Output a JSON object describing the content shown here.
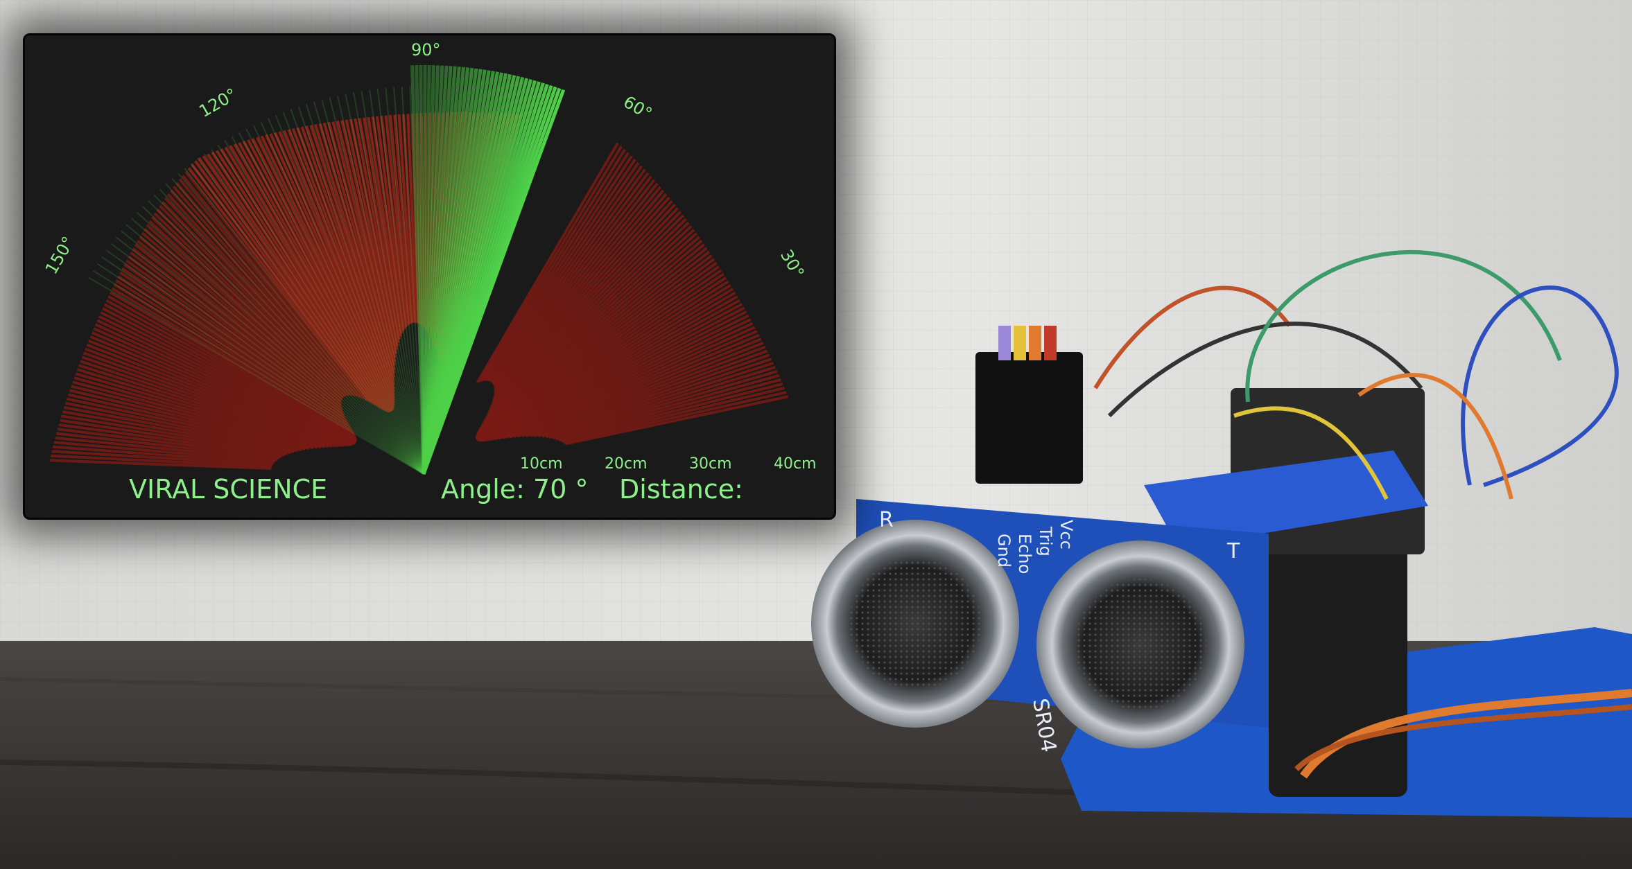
{
  "radar": {
    "brand": "VIRAL SCIENCE",
    "angle_label": "Angle: 70 °",
    "distance_label": "Distance:",
    "current_angle_deg": 70,
    "angle_labels": [
      "30°",
      "60°",
      "90°",
      "120°",
      "150°"
    ],
    "range_labels": [
      "10cm",
      "20cm",
      "30cm",
      "40cm"
    ],
    "colors": {
      "grid": "#86f07f",
      "sweep": "#4fd149",
      "object": "#7a1a14",
      "background": "#1a1a1a"
    }
  },
  "sensor": {
    "board_labels": [
      "R",
      "T",
      "Gnd",
      "Echo",
      "Trig",
      "Vcc",
      "SR04"
    ]
  }
}
